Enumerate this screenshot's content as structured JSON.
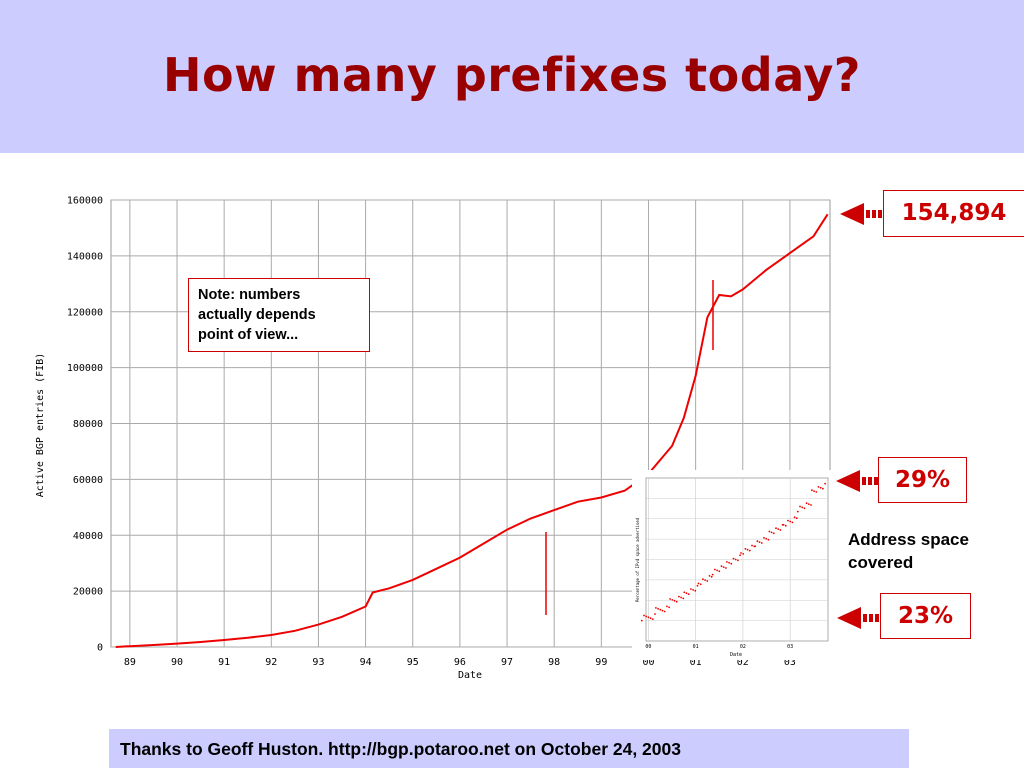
{
  "slide": {
    "title": "How many prefixes today?",
    "note_lines": [
      "Note: numbers",
      "actually depends",
      "point of view..."
    ],
    "callouts": {
      "top": "154,894",
      "mid": "29%",
      "low": "23%"
    },
    "address_lines": [
      "Address space",
      "covered"
    ],
    "footer": "Thanks to Geoff Huston. http://bgp.potaroo.net on October 24, 2003",
    "accent_color": "#cc0000",
    "title_color": "#990000",
    "header_color": "#ccccff",
    "arrow_icon": "left-arrow-icon"
  },
  "chart_data": [
    {
      "type": "line",
      "xlabel": "Date",
      "ylabel": "Active BGP entries (FIB)",
      "xlim": [
        1988.6,
        2003.85
      ],
      "ylim": [
        0,
        160000
      ],
      "x_ticks": [
        "89",
        "90",
        "91",
        "92",
        "93",
        "94",
        "95",
        "96",
        "97",
        "98",
        "99",
        "00",
        "01",
        "02",
        "03"
      ],
      "y_ticks": [
        0,
        20000,
        40000,
        60000,
        80000,
        100000,
        120000,
        140000,
        160000
      ],
      "grid": true,
      "series": [
        {
          "color": "#ee0000",
          "x": [
            1988.7,
            1989.0,
            1989.5,
            1990.0,
            1990.5,
            1991.0,
            1991.5,
            1992.0,
            1992.5,
            1993.0,
            1993.5,
            1994.0,
            1994.15,
            1994.5,
            1995.0,
            1995.5,
            1996.0,
            1996.5,
            1997.0,
            1997.5,
            1998.0,
            1998.5,
            1999.0,
            1999.5,
            2000.0,
            2000.5,
            2000.75,
            2001.0,
            2001.25,
            2001.5,
            2001.75,
            2002.0,
            2002.5,
            2003.0,
            2003.5,
            2003.8
          ],
          "y": [
            0,
            300,
            700,
            1200,
            1800,
            2500,
            3300,
            4300,
            5800,
            8000,
            10800,
            14500,
            19500,
            21000,
            24000,
            28000,
            32000,
            37000,
            42000,
            46000,
            49000,
            52000,
            53500,
            56000,
            62000,
            72000,
            82000,
            97000,
            118000,
            126000,
            125500,
            128000,
            135000,
            141000,
            147000,
            154894
          ]
        }
      ]
    },
    {
      "type": "scatter",
      "xlabel": "Date",
      "ylabel": "Percentage of IPv4 space advertised",
      "x_ticks": [
        "00",
        "01",
        "02",
        "03"
      ],
      "grid": true,
      "series": [
        {
          "color": "#ee0000",
          "x": [
            2000.0,
            2000.3,
            2000.6,
            2000.9,
            2001.2,
            2001.5,
            2001.8,
            2002.1,
            2002.4,
            2002.7,
            2003.0,
            2003.3,
            2003.6
          ],
          "y": [
            23.0,
            23.4,
            23.9,
            24.3,
            24.8,
            25.3,
            25.7,
            26.2,
            26.6,
            27.1,
            27.5,
            28.2,
            29.0
          ]
        }
      ]
    }
  ]
}
